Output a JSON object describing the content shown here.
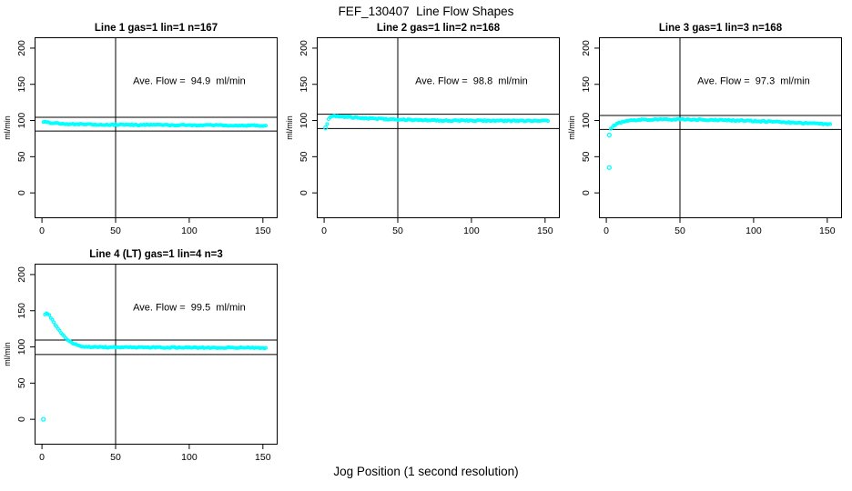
{
  "chart_data": {
    "type": "scatter",
    "title": "FEF_130407  Line Flow Shapes",
    "xlabel": "Jog Position (1 second resolution)",
    "ylabel": "ml/min",
    "point_color": "#00FFFF",
    "axis_color": "#000000",
    "x_ticks": [
      0,
      50,
      100,
      150
    ],
    "y_ticks": [
      0,
      50,
      100,
      150,
      200
    ],
    "xlim": [
      -5,
      160
    ],
    "ylim": [
      -35,
      215
    ],
    "vline_x": 50,
    "annotation_pos": [
      100,
      150
    ],
    "grid": "off",
    "panels": [
      {
        "title": "Line 1 gas=1 lin=1 n=167",
        "ave_flow": 94.9,
        "annotation": "Ave. Flow =  94.9  ml/min",
        "hlines": [
          104.4,
          85.4
        ],
        "outliers": [],
        "curve": [
          [
            1,
            97.5
          ],
          [
            2,
            98
          ],
          [
            3,
            97.8
          ],
          [
            5,
            97.2
          ],
          [
            8,
            96.5
          ],
          [
            12,
            95.8
          ],
          [
            16,
            95.3
          ],
          [
            20,
            95
          ],
          [
            30,
            94.7
          ],
          [
            40,
            94.4
          ],
          [
            50,
            94.2
          ],
          [
            60,
            94
          ],
          [
            70,
            94
          ],
          [
            80,
            93.9
          ],
          [
            90,
            93.8
          ],
          [
            100,
            93.6
          ],
          [
            110,
            93.5
          ],
          [
            120,
            93.4
          ],
          [
            130,
            93.2
          ],
          [
            140,
            93.1
          ],
          [
            152,
            93
          ]
        ]
      },
      {
        "title": "Line 2 gas=1 lin=2 n=168",
        "ave_flow": 98.8,
        "annotation": "Ave. Flow =  98.8  ml/min",
        "hlines": [
          108.7,
          88.9
        ],
        "outliers": [
          [
            1,
            90
          ]
        ],
        "curve": [
          [
            2,
            95
          ],
          [
            3,
            102
          ],
          [
            4,
            104.5
          ],
          [
            5,
            105.5
          ],
          [
            7,
            106
          ],
          [
            10,
            105.8
          ],
          [
            14,
            105.2
          ],
          [
            18,
            104.5
          ],
          [
            22,
            104
          ],
          [
            28,
            103.2
          ],
          [
            34,
            102.5
          ],
          [
            40,
            102
          ],
          [
            50,
            101.3
          ],
          [
            60,
            100.8
          ],
          [
            70,
            100.4
          ],
          [
            80,
            100.2
          ],
          [
            90,
            100
          ],
          [
            100,
            99.9
          ],
          [
            110,
            99.8
          ],
          [
            120,
            99.7
          ],
          [
            130,
            99.6
          ],
          [
            140,
            99.5
          ],
          [
            152,
            99.5
          ]
        ]
      },
      {
        "title": "Line 3 gas=1 lin=3 n=168",
        "ave_flow": 97.3,
        "annotation": "Ave. Flow =  97.3  ml/min",
        "hlines": [
          107.0,
          87.6
        ],
        "outliers": [
          [
            2,
            35
          ],
          [
            2,
            80
          ]
        ],
        "curve": [
          [
            3,
            88
          ],
          [
            4,
            90.5
          ],
          [
            5,
            92.5
          ],
          [
            7,
            95
          ],
          [
            9,
            96.8
          ],
          [
            12,
            98.5
          ],
          [
            15,
            99.5
          ],
          [
            18,
            100.3
          ],
          [
            22,
            100.8
          ],
          [
            26,
            101.2
          ],
          [
            30,
            101.4
          ],
          [
            40,
            101.6
          ],
          [
            50,
            101.5
          ],
          [
            60,
            101.4
          ],
          [
            70,
            101
          ],
          [
            80,
            100.5
          ],
          [
            90,
            100
          ],
          [
            100,
            99.3
          ],
          [
            110,
            98.5
          ],
          [
            120,
            97.6
          ],
          [
            130,
            96.8
          ],
          [
            140,
            96
          ],
          [
            152,
            95
          ]
        ]
      },
      {
        "title": "Line 4 (LT) gas=1 lin=4 n=3",
        "ave_flow": 99.5,
        "annotation": "Ave. Flow =  99.5  ml/min",
        "hlines": [
          109.5,
          89.6
        ],
        "outliers": [
          [
            1,
            0
          ]
        ],
        "curve": [
          [
            2,
            144
          ],
          [
            3,
            146.5
          ],
          [
            4,
            146
          ],
          [
            5,
            143.5
          ],
          [
            6,
            140.5
          ],
          [
            7,
            137.5
          ],
          [
            8,
            134
          ],
          [
            9,
            131
          ],
          [
            10,
            128
          ],
          [
            11,
            125
          ],
          [
            12,
            122
          ],
          [
            13,
            119.5
          ],
          [
            14,
            117
          ],
          [
            15,
            114.5
          ],
          [
            16,
            112.5
          ],
          [
            17,
            110.5
          ],
          [
            18,
            109
          ],
          [
            19,
            107.5
          ],
          [
            20,
            106
          ],
          [
            22,
            104
          ],
          [
            24,
            102.5
          ],
          [
            26,
            101.5
          ],
          [
            28,
            100.8
          ],
          [
            30,
            100.3
          ],
          [
            35,
            99.8
          ],
          [
            40,
            99.6
          ],
          [
            50,
            99.5
          ],
          [
            60,
            99.5
          ],
          [
            70,
            99.4
          ],
          [
            80,
            99.3
          ],
          [
            90,
            99.2
          ],
          [
            100,
            99.1
          ],
          [
            110,
            99
          ],
          [
            120,
            99
          ],
          [
            130,
            98.9
          ],
          [
            140,
            98.8
          ],
          [
            152,
            98.7
          ]
        ]
      }
    ]
  }
}
